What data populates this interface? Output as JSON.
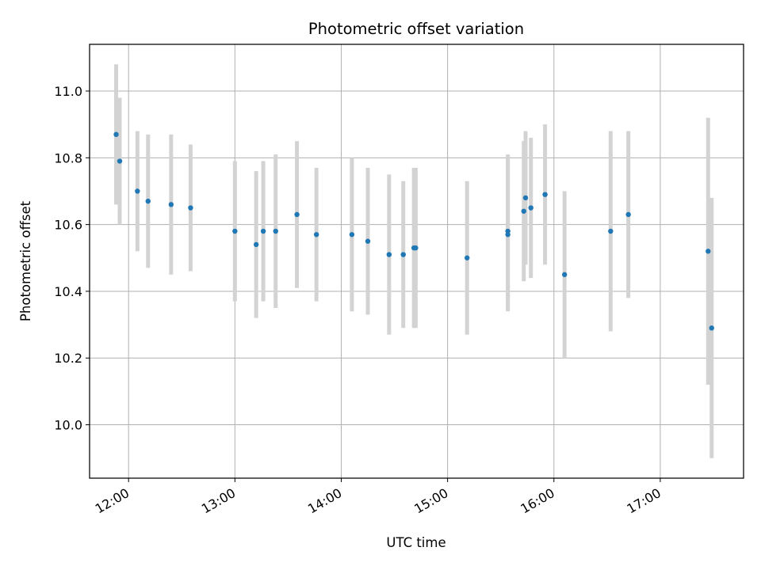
{
  "chart_data": {
    "type": "scatter",
    "title": "Photometric offset variation",
    "xlabel": "UTC time",
    "ylabel": "Photometric offset",
    "xlim": [
      "11:38",
      "17:47"
    ],
    "ylim": [
      9.84,
      11.14
    ],
    "x_ticks": [
      "12:00",
      "13:00",
      "14:00",
      "15:00",
      "16:00",
      "17:00"
    ],
    "y_ticks": [
      10.0,
      10.2,
      10.4,
      10.6,
      10.8,
      11.0
    ],
    "y_tick_labels": [
      "10.0",
      "10.2",
      "10.4",
      "10.6",
      "10.8",
      "11.0"
    ],
    "grid": true,
    "colors": {
      "point": "#1f77b4",
      "errorbar": "#d3d3d3",
      "grid": "#b0b0b0"
    },
    "points": [
      {
        "x": "11:53",
        "y": 10.87,
        "yerr": 0.21
      },
      {
        "x": "11:55",
        "y": 10.79,
        "yerr": 0.19
      },
      {
        "x": "12:05",
        "y": 10.7,
        "yerr": 0.18
      },
      {
        "x": "12:11",
        "y": 10.67,
        "yerr": 0.2
      },
      {
        "x": "12:24",
        "y": 10.66,
        "yerr": 0.21
      },
      {
        "x": "12:35",
        "y": 10.65,
        "yerr": 0.19
      },
      {
        "x": "13:00",
        "y": 10.58,
        "yerr": 0.21
      },
      {
        "x": "13:12",
        "y": 10.54,
        "yerr": 0.22
      },
      {
        "x": "13:16",
        "y": 10.58,
        "yerr": 0.21
      },
      {
        "x": "13:23",
        "y": 10.58,
        "yerr": 0.23
      },
      {
        "x": "13:35",
        "y": 10.63,
        "yerr": 0.22
      },
      {
        "x": "13:46",
        "y": 10.57,
        "yerr": 0.2
      },
      {
        "x": "14:06",
        "y": 10.57,
        "yerr": 0.23
      },
      {
        "x": "14:15",
        "y": 10.55,
        "yerr": 0.22
      },
      {
        "x": "14:27",
        "y": 10.51,
        "yerr": 0.24
      },
      {
        "x": "14:35",
        "y": 10.51,
        "yerr": 0.22
      },
      {
        "x": "14:41",
        "y": 10.53,
        "yerr": 0.24
      },
      {
        "x": "14:42",
        "y": 10.53,
        "yerr": 0.24
      },
      {
        "x": "15:11",
        "y": 10.5,
        "yerr": 0.23
      },
      {
        "x": "15:34",
        "y": 10.58,
        "yerr": 0.23
      },
      {
        "x": "15:34",
        "y": 10.57,
        "yerr": 0.23
      },
      {
        "x": "15:43",
        "y": 10.64,
        "yerr": 0.21
      },
      {
        "x": "15:44",
        "y": 10.68,
        "yerr": 0.2
      },
      {
        "x": "15:47",
        "y": 10.65,
        "yerr": 0.21
      },
      {
        "x": "15:55",
        "y": 10.69,
        "yerr": 0.21
      },
      {
        "x": "16:06",
        "y": 10.45,
        "yerr": 0.25
      },
      {
        "x": "16:32",
        "y": 10.58,
        "yerr": 0.3
      },
      {
        "x": "16:42",
        "y": 10.63,
        "yerr": 0.25
      },
      {
        "x": "17:27",
        "y": 10.52,
        "yerr": 0.4
      },
      {
        "x": "17:29",
        "y": 10.29,
        "yerr": 0.39
      }
    ]
  }
}
